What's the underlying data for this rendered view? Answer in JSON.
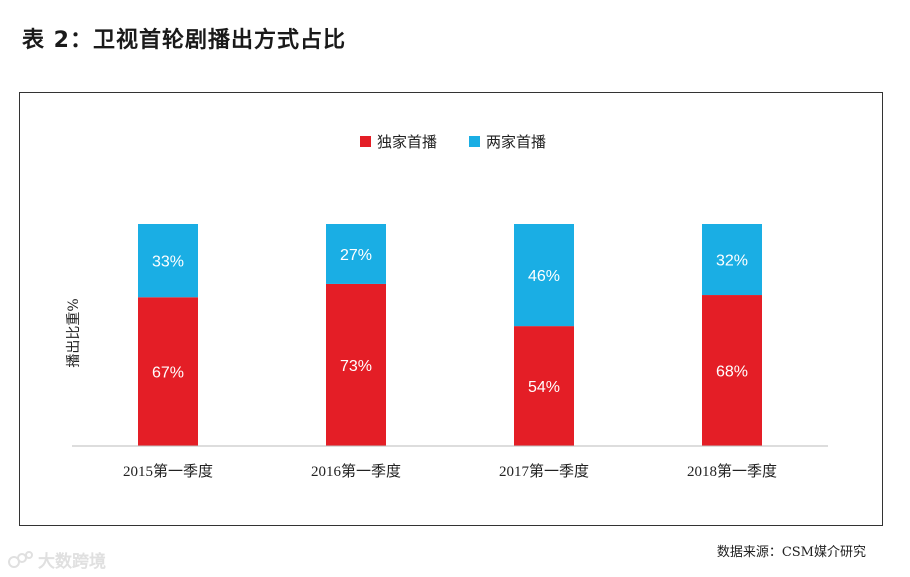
{
  "title": "表 2：卫视首轮剧播出方式占比",
  "source_note": "数据来源：CSM媒介研究",
  "watermark": {
    "text": "大数跨境",
    "logo_icon": "watermark-logo-icon"
  },
  "chart_data": {
    "type": "bar",
    "stacked": true,
    "title": "",
    "xlabel": "",
    "ylabel": "播出比重%",
    "ylim": [
      0,
      100
    ],
    "grid": false,
    "legend_position": "top-center",
    "categories": [
      "2015第一季度",
      "2016第一季度",
      "2017第一季度",
      "2018第一季度"
    ],
    "series": [
      {
        "name": "独家首播",
        "color": "#e41e26",
        "values": [
          67,
          73,
          54,
          68
        ],
        "labels": [
          "67%",
          "73%",
          "54%",
          "68%"
        ]
      },
      {
        "name": "两家首播",
        "color": "#1aaee4",
        "values": [
          33,
          27,
          46,
          32
        ],
        "labels": [
          "33%",
          "27%",
          "46%",
          "32%"
        ]
      }
    ]
  }
}
